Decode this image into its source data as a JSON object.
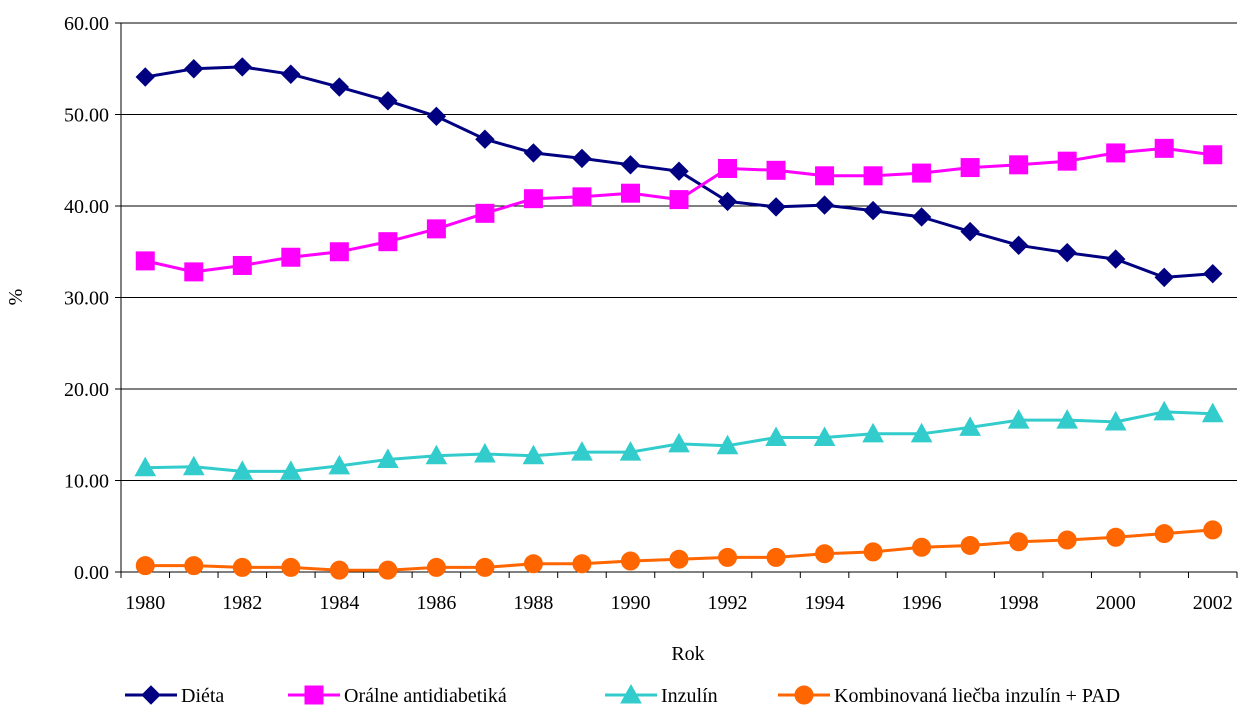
{
  "chart_data": {
    "type": "line",
    "title": "",
    "xlabel": "Rok",
    "ylabel": "%",
    "ylim": [
      0,
      60
    ],
    "yticks": [
      "0.00",
      "10.00",
      "20.00",
      "30.00",
      "40.00",
      "50.00",
      "60.00"
    ],
    "xtick_labels": [
      "1980",
      "1982",
      "1984",
      "1986",
      "1988",
      "1990",
      "1992",
      "1994",
      "1996",
      "1998",
      "2000",
      "2002"
    ],
    "grid": "horizontal",
    "legend_position": "bottom",
    "x": [
      1980,
      1981,
      1982,
      1983,
      1984,
      1985,
      1986,
      1987,
      1988,
      1989,
      1990,
      1991,
      1992,
      1993,
      1994,
      1995,
      1996,
      1997,
      1998,
      1999,
      2000,
      2001,
      2002
    ],
    "series": [
      {
        "name": "Diéta",
        "color": "#000080",
        "marker": "diamond",
        "values": [
          54.1,
          55.0,
          55.2,
          54.4,
          53.0,
          51.5,
          49.8,
          47.3,
          45.8,
          45.2,
          44.5,
          43.8,
          40.5,
          39.9,
          40.1,
          39.5,
          38.8,
          37.2,
          35.7,
          34.9,
          34.2,
          32.2,
          32.6
        ]
      },
      {
        "name": "Orálne antidiabetiká",
        "color": "#FF00FF",
        "marker": "square",
        "values": [
          34.0,
          32.8,
          33.5,
          34.4,
          35.0,
          36.1,
          37.5,
          39.2,
          40.8,
          41.0,
          41.4,
          40.7,
          44.1,
          43.9,
          43.3,
          43.3,
          43.6,
          44.2,
          44.5,
          44.9,
          45.8,
          46.3,
          45.6
        ]
      },
      {
        "name": "Inzulín",
        "color": "#33CCCC",
        "marker": "triangle",
        "values": [
          11.4,
          11.5,
          11.0,
          11.0,
          11.6,
          12.3,
          12.7,
          12.9,
          12.7,
          13.1,
          13.1,
          14.0,
          13.8,
          14.7,
          14.7,
          15.1,
          15.1,
          15.8,
          16.6,
          16.6,
          16.4,
          17.5,
          17.3
        ]
      },
      {
        "name": "Kombinovaná liečba inzulín + PAD",
        "color": "#FF6600",
        "marker": "circle",
        "values": [
          0.7,
          0.7,
          0.5,
          0.5,
          0.2,
          0.2,
          0.5,
          0.5,
          0.9,
          0.9,
          1.2,
          1.4,
          1.6,
          1.6,
          2.0,
          2.2,
          2.7,
          2.9,
          3.3,
          3.5,
          3.8,
          4.2,
          4.6
        ]
      }
    ]
  }
}
